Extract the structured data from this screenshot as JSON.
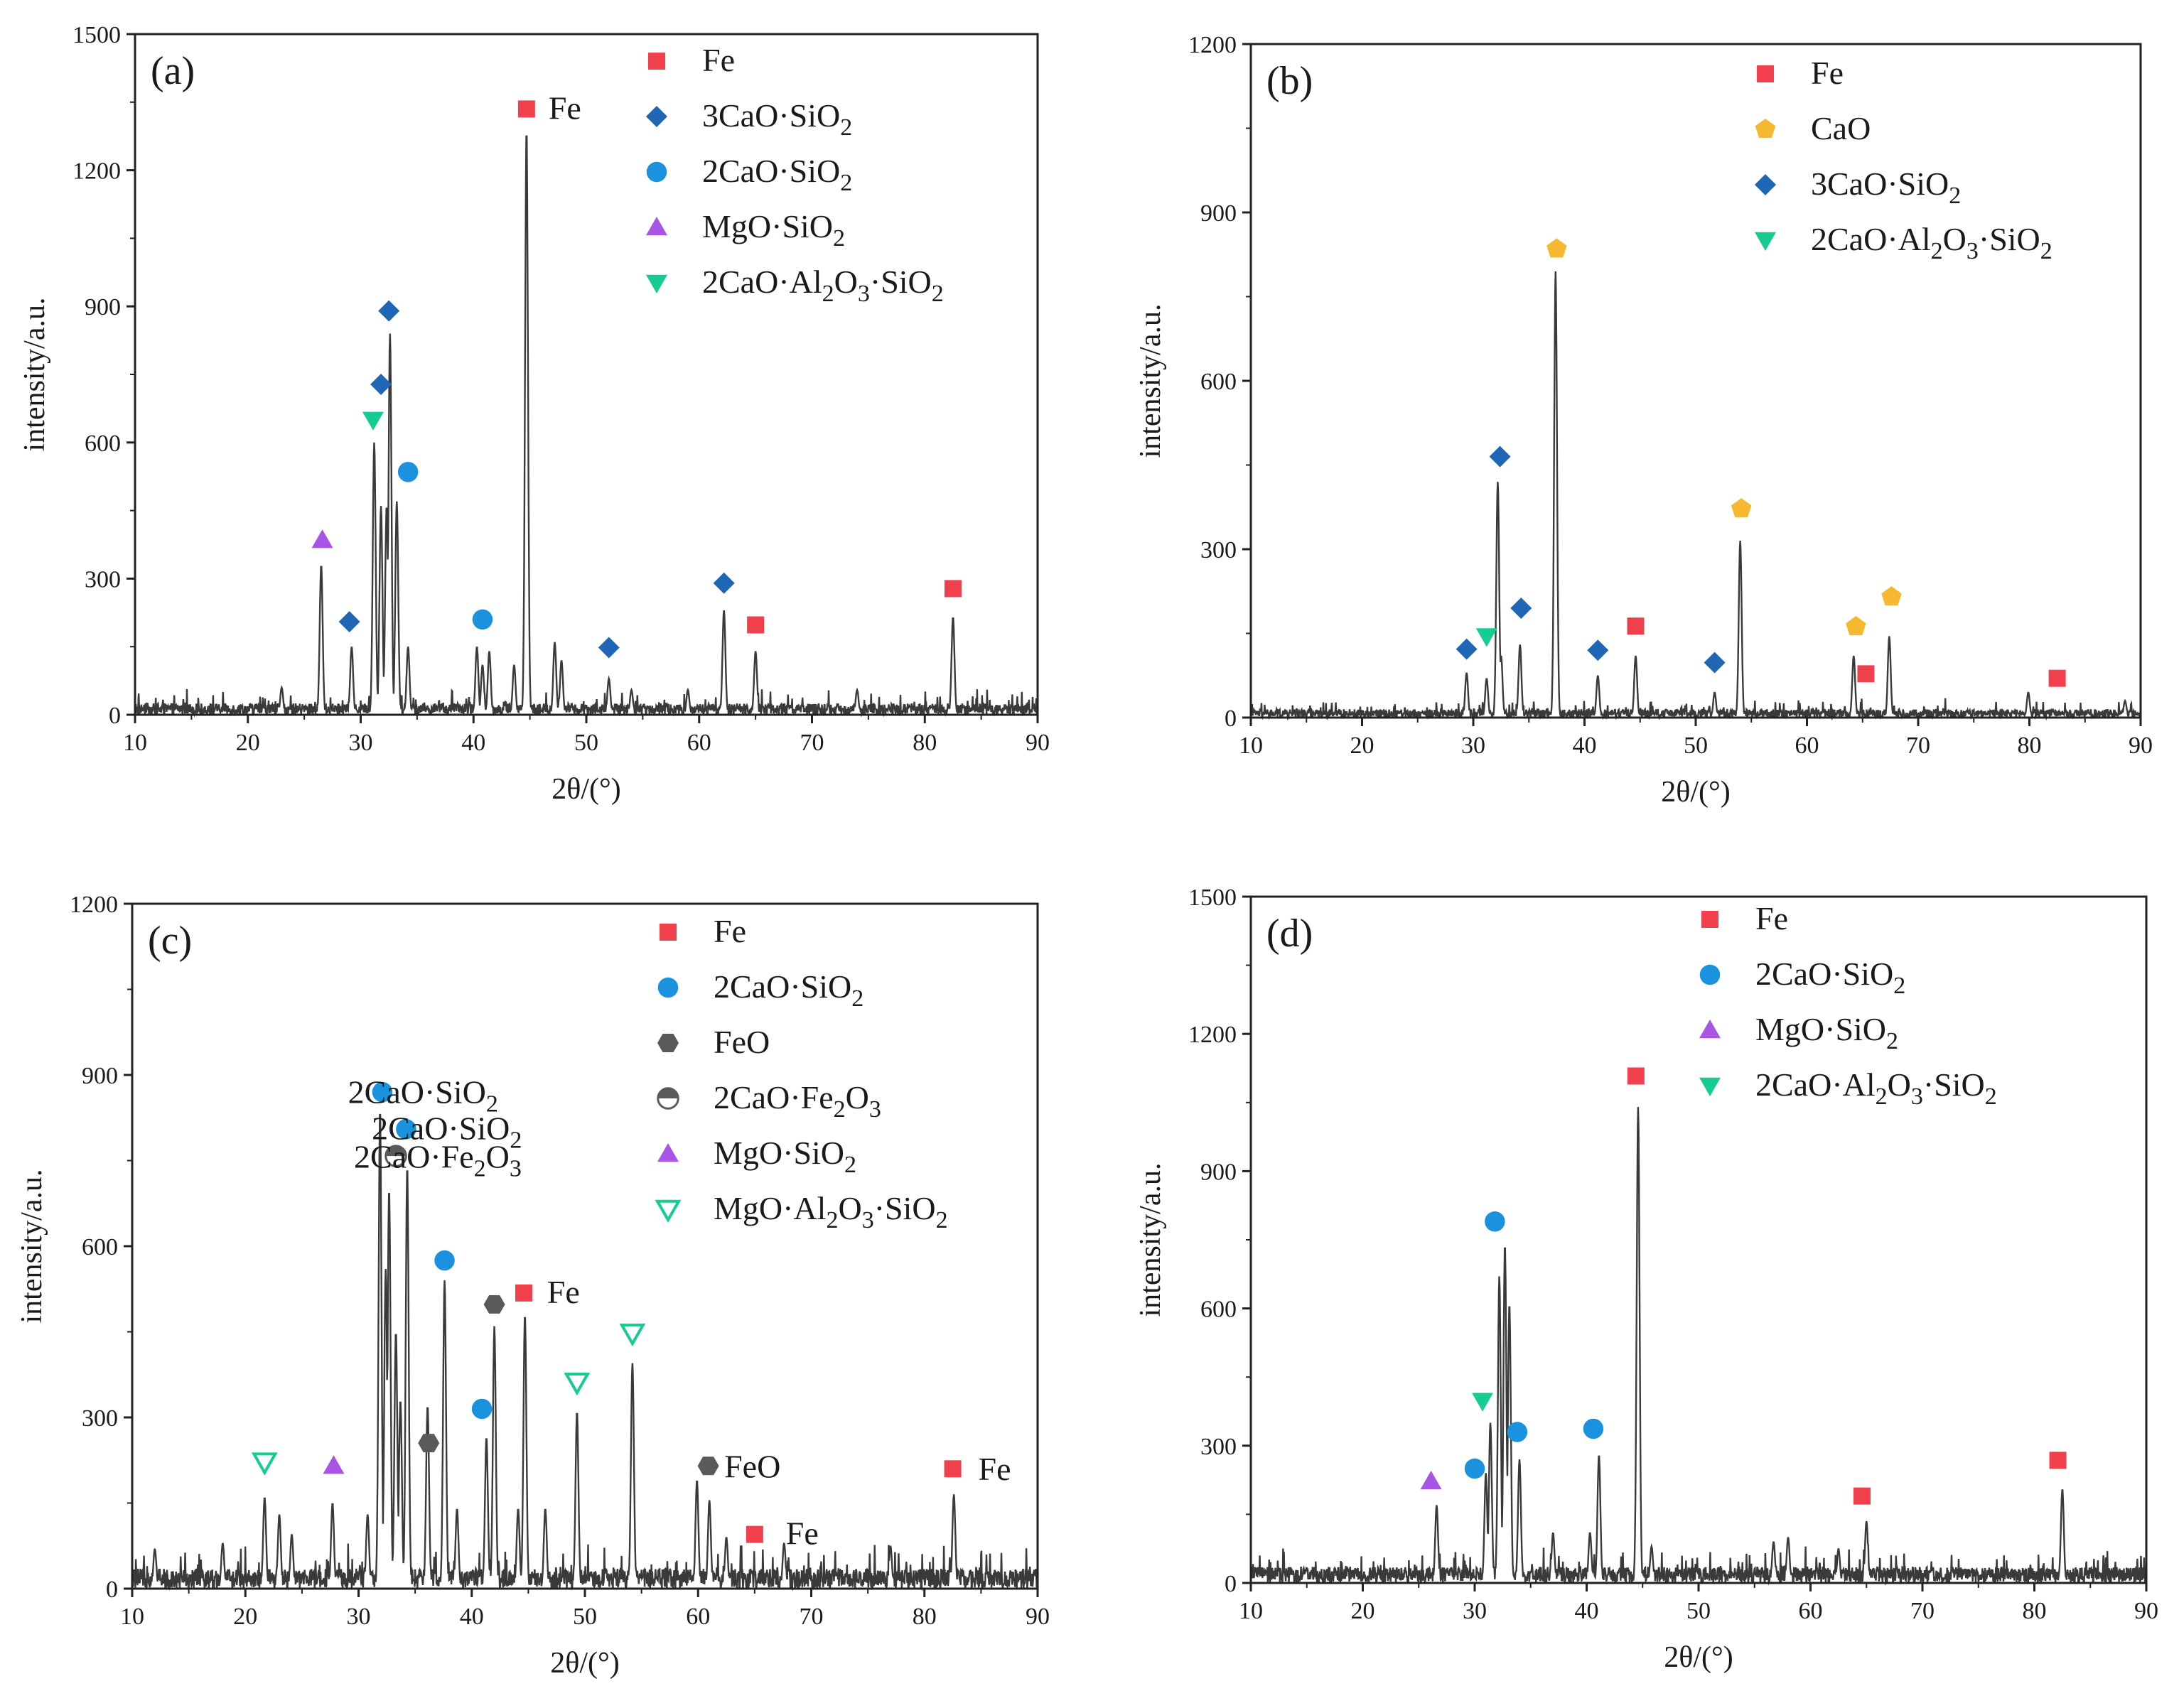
{
  "figure": {
    "markerColors": {
      "Fe": "#f0404c",
      "CaO": "#f5b82e",
      "C3S": "#1f67b5",
      "C2S": "#1a92de",
      "MS": "#a855e6",
      "C2AS": "#16cc92",
      "MAS": "#16cc92",
      "FeO": "#5a5a5a",
      "C2F": "#5a5a5a"
    },
    "lineColor": "#3a3a3a"
  },
  "chart_data": [
    {
      "type": "line",
      "label": "(a)",
      "xlabel": "2θ/(°)",
      "ylabel": "intensity/a.u.",
      "xlim": [
        10,
        90
      ],
      "ylim": [
        0,
        1500
      ],
      "xticks": [
        "10",
        "20",
        "30",
        "40",
        "50",
        "60",
        "70",
        "80",
        "90"
      ],
      "yticks": [
        "0",
        "300",
        "600",
        "900",
        "1200",
        "1500"
      ],
      "noise": 25,
      "peaks": [
        [
          23,
          60
        ],
        [
          26.5,
          330
        ],
        [
          29.2,
          150
        ],
        [
          31.2,
          600
        ],
        [
          31.8,
          460
        ],
        [
          32.3,
          460
        ],
        [
          32.6,
          840
        ],
        [
          33.2,
          470
        ],
        [
          34.2,
          150
        ],
        [
          40.3,
          150
        ],
        [
          40.8,
          110
        ],
        [
          41.4,
          140
        ],
        [
          43.6,
          110
        ],
        [
          44.7,
          1290
        ],
        [
          47.2,
          160
        ],
        [
          47.8,
          120
        ],
        [
          52,
          80
        ],
        [
          54,
          55
        ],
        [
          59,
          55
        ],
        [
          62.2,
          230
        ],
        [
          65,
          140
        ],
        [
          74,
          55
        ],
        [
          82.5,
          215
        ]
      ],
      "legend": [
        {
          "marker": "Fe",
          "label": "Fe",
          "sub": ""
        },
        {
          "marker": "C3S",
          "label": "3CaO·SiO",
          "sub": "2"
        },
        {
          "marker": "C2S",
          "label": "2CaO·SiO",
          "sub": "2"
        },
        {
          "marker": "MS",
          "label": "MgO·SiO",
          "sub": "2"
        },
        {
          "marker": "C2AS",
          "label": "2CaO·Al",
          "sub": "2",
          "label2": "O",
          "sub2": "3",
          "label3": "·SiO",
          "sub3": "2"
        }
      ],
      "markers": [
        {
          "type": "Fe",
          "x": 44.7,
          "y": 1335
        },
        {
          "type": "C3S",
          "x": 29,
          "y": 205
        },
        {
          "type": "C3S",
          "x": 31.8,
          "y": 728
        },
        {
          "type": "C3S",
          "x": 32.5,
          "y": 890
        },
        {
          "type": "C3S",
          "x": 52,
          "y": 148
        },
        {
          "type": "C3S",
          "x": 62.2,
          "y": 290
        },
        {
          "type": "C2S",
          "x": 34.2,
          "y": 535
        },
        {
          "type": "C2S",
          "x": 40.8,
          "y": 210
        },
        {
          "type": "MS",
          "x": 26.6,
          "y": 385
        },
        {
          "type": "C2AS",
          "x": 31.1,
          "y": 650
        },
        {
          "type": "Fe",
          "x": 65,
          "y": 198
        },
        {
          "type": "Fe",
          "x": 82.5,
          "y": 278
        }
      ],
      "annotations": [
        {
          "text": "Fe",
          "x": 48.1,
          "y": 1335
        }
      ]
    },
    {
      "type": "line",
      "label": "(b)",
      "xlabel": "2θ/(°)",
      "ylabel": "intensity/a.u.",
      "xlim": [
        10,
        90
      ],
      "ylim": [
        0,
        1200
      ],
      "xticks": [
        "10",
        "20",
        "30",
        "40",
        "50",
        "60",
        "70",
        "80",
        "90"
      ],
      "yticks": [
        "0",
        "300",
        "600",
        "900",
        "1200"
      ],
      "noise": 15,
      "peaks": [
        [
          29.4,
          80
        ],
        [
          31.2,
          70
        ],
        [
          32.2,
          420
        ],
        [
          32.5,
          110
        ],
        [
          34.2,
          130
        ],
        [
          37.4,
          795
        ],
        [
          41.2,
          75
        ],
        [
          44.6,
          110
        ],
        [
          51.7,
          45
        ],
        [
          54,
          315
        ],
        [
          64.2,
          110
        ],
        [
          67.4,
          145
        ],
        [
          79.9,
          45
        ],
        [
          88.6,
          30
        ]
      ],
      "legend": [
        {
          "marker": "Fe",
          "label": "Fe",
          "sub": ""
        },
        {
          "marker": "CaO",
          "label": "CaO",
          "sub": ""
        },
        {
          "marker": "C3S",
          "label": "3CaO·SiO",
          "sub": "2"
        },
        {
          "marker": "C2AS",
          "label": "2CaO·Al",
          "sub": "2",
          "label2": "O",
          "sub2": "3",
          "label3": "·SiO",
          "sub3": "2"
        }
      ],
      "markers": [
        {
          "type": "CaO",
          "x": 37.5,
          "y": 835
        },
        {
          "type": "CaO",
          "x": 54.1,
          "y": 372
        },
        {
          "type": "CaO",
          "x": 64.4,
          "y": 162
        },
        {
          "type": "CaO",
          "x": 67.6,
          "y": 215
        },
        {
          "type": "C3S",
          "x": 32.4,
          "y": 465
        },
        {
          "type": "C3S",
          "x": 29.4,
          "y": 122
        },
        {
          "type": "C3S",
          "x": 34.3,
          "y": 195
        },
        {
          "type": "C3S",
          "x": 41.2,
          "y": 120
        },
        {
          "type": "C3S",
          "x": 51.7,
          "y": 98
        },
        {
          "type": "C2AS",
          "x": 31.2,
          "y": 145
        },
        {
          "type": "Fe",
          "x": 44.6,
          "y": 163
        },
        {
          "type": "Fe",
          "x": 65.3,
          "y": 78
        },
        {
          "type": "Fe",
          "x": 82.5,
          "y": 70
        }
      ],
      "annotations": []
    },
    {
      "type": "line",
      "label": "(c)",
      "xlabel": "2θ/(°)",
      "ylabel": "intensity/a.u.",
      "xlim": [
        10,
        90
      ],
      "ylim": [
        0,
        1200
      ],
      "xticks": [
        "10",
        "20",
        "30",
        "40",
        "50",
        "60",
        "70",
        "80",
        "90"
      ],
      "yticks": [
        "0",
        "300",
        "600",
        "900",
        "1200"
      ],
      "noise": 35,
      "peaks": [
        [
          12,
          70
        ],
        [
          18,
          80
        ],
        [
          21.7,
          160
        ],
        [
          23,
          130
        ],
        [
          24.1,
          95
        ],
        [
          27.7,
          150
        ],
        [
          30.8,
          130
        ],
        [
          31.9,
          840
        ],
        [
          32.4,
          560
        ],
        [
          32.7,
          700
        ],
        [
          33.3,
          450
        ],
        [
          33.7,
          330
        ],
        [
          34.3,
          740
        ],
        [
          36.1,
          320
        ],
        [
          37.6,
          540
        ],
        [
          38.7,
          140
        ],
        [
          41.3,
          265
        ],
        [
          42,
          460
        ],
        [
          44.1,
          140
        ],
        [
          44.7,
          480
        ],
        [
          46.5,
          140
        ],
        [
          49.3,
          310
        ],
        [
          54.2,
          395
        ],
        [
          59.9,
          190
        ],
        [
          61,
          155
        ],
        [
          62.5,
          90
        ],
        [
          67.6,
          80
        ],
        [
          77,
          75
        ],
        [
          82.6,
          165
        ]
      ],
      "legend": [
        {
          "marker": "Fe",
          "label": "Fe",
          "sub": ""
        },
        {
          "marker": "C2S",
          "label": "2CaO·SiO",
          "sub": "2"
        },
        {
          "marker": "FeO",
          "label": "FeO",
          "sub": ""
        },
        {
          "marker": "C2F",
          "label": "2CaO·Fe",
          "sub": "2",
          "label2": "O",
          "sub2": "3"
        },
        {
          "marker": "MS",
          "label": "MgO·SiO",
          "sub": "2"
        },
        {
          "marker": "MAS",
          "label": "MgO·Al",
          "sub": "2",
          "label2": "O",
          "sub2": "3",
          "label3": "·SiO",
          "sub3": "2"
        }
      ],
      "markers": [
        {
          "type": "C2S",
          "x": 32.1,
          "y": 870
        },
        {
          "type": "C2S",
          "x": 34.2,
          "y": 805
        },
        {
          "type": "C2F",
          "x": 33.3,
          "y": 758
        },
        {
          "type": "C2S",
          "x": 37.6,
          "y": 575
        },
        {
          "type": "C2S",
          "x": 40.9,
          "y": 315
        },
        {
          "type": "Fe",
          "x": 44.6,
          "y": 518
        },
        {
          "type": "FeO",
          "x": 42,
          "y": 498
        },
        {
          "type": "FeO",
          "x": 36.2,
          "y": 255
        },
        {
          "type": "FeO",
          "x": 60.9,
          "y": 215
        },
        {
          "type": "MAS",
          "x": 21.7,
          "y": 222
        },
        {
          "type": "MAS",
          "x": 49.3,
          "y": 362
        },
        {
          "type": "MAS",
          "x": 54.2,
          "y": 448
        },
        {
          "type": "MS",
          "x": 27.8,
          "y": 215
        },
        {
          "type": "Fe",
          "x": 65,
          "y": 95
        },
        {
          "type": "Fe",
          "x": 82.5,
          "y": 210
        }
      ],
      "annotations": [
        {
          "text": "2CaO·SiO",
          "sub": "2",
          "x": 35.7,
          "y": 868
        },
        {
          "text": "2CaO·SiO",
          "sub": "2",
          "x": 37.8,
          "y": 805
        },
        {
          "text": "2CaO·Fe",
          "sub": "2",
          "text2": "O",
          "sub2": "3",
          "x": 37,
          "y": 755
        },
        {
          "text": "Fe",
          "x": 48.1,
          "y": 518
        },
        {
          "text": "FeO",
          "x": 64.8,
          "y": 212
        },
        {
          "text": "Fe",
          "x": 69.2,
          "y": 95
        },
        {
          "text": "Fe",
          "x": 86.2,
          "y": 208
        }
      ]
    },
    {
      "type": "line",
      "label": "(d)",
      "xlabel": "2θ/(°)",
      "ylabel": "intensity/a.u.",
      "xlim": [
        10,
        90
      ],
      "ylim": [
        0,
        1500
      ],
      "xticks": [
        "10",
        "20",
        "30",
        "40",
        "50",
        "60",
        "70",
        "80",
        "90"
      ],
      "yticks": [
        "0",
        "300",
        "600",
        "900",
        "1200",
        "1500"
      ],
      "noise": 35,
      "peaks": [
        [
          26.6,
          170
        ],
        [
          31,
          240
        ],
        [
          31.4,
          350
        ],
        [
          32.2,
          670
        ],
        [
          32.7,
          740
        ],
        [
          33.1,
          610
        ],
        [
          34,
          270
        ],
        [
          37,
          110
        ],
        [
          40.3,
          110
        ],
        [
          41.1,
          280
        ],
        [
          44.6,
          1040
        ],
        [
          45.8,
          80
        ],
        [
          56.7,
          90
        ],
        [
          58,
          100
        ],
        [
          62.5,
          75
        ],
        [
          65,
          135
        ],
        [
          82.5,
          205
        ]
      ],
      "legend": [
        {
          "marker": "Fe",
          "label": "Fe",
          "sub": ""
        },
        {
          "marker": "C2S",
          "label": "2CaO·SiO",
          "sub": "2"
        },
        {
          "marker": "MS",
          "label": "MgO·SiO",
          "sub": "2"
        },
        {
          "marker": "C2AS",
          "label": "2CaO·Al",
          "sub": "2",
          "label2": "O",
          "sub2": "3",
          "label3": "·SiO",
          "sub3": "2"
        }
      ],
      "markers": [
        {
          "type": "Fe",
          "x": 44.4,
          "y": 1108
        },
        {
          "type": "C2S",
          "x": 31.8,
          "y": 790
        },
        {
          "type": "C2S",
          "x": 30,
          "y": 250
        },
        {
          "type": "C2S",
          "x": 33.8,
          "y": 330
        },
        {
          "type": "C2S",
          "x": 40.6,
          "y": 337
        },
        {
          "type": "MS",
          "x": 26.1,
          "y": 222
        },
        {
          "type": "C2AS",
          "x": 30.7,
          "y": 398
        },
        {
          "type": "Fe",
          "x": 64.6,
          "y": 190
        },
        {
          "type": "Fe",
          "x": 82.1,
          "y": 268
        }
      ],
      "annotations": []
    }
  ]
}
